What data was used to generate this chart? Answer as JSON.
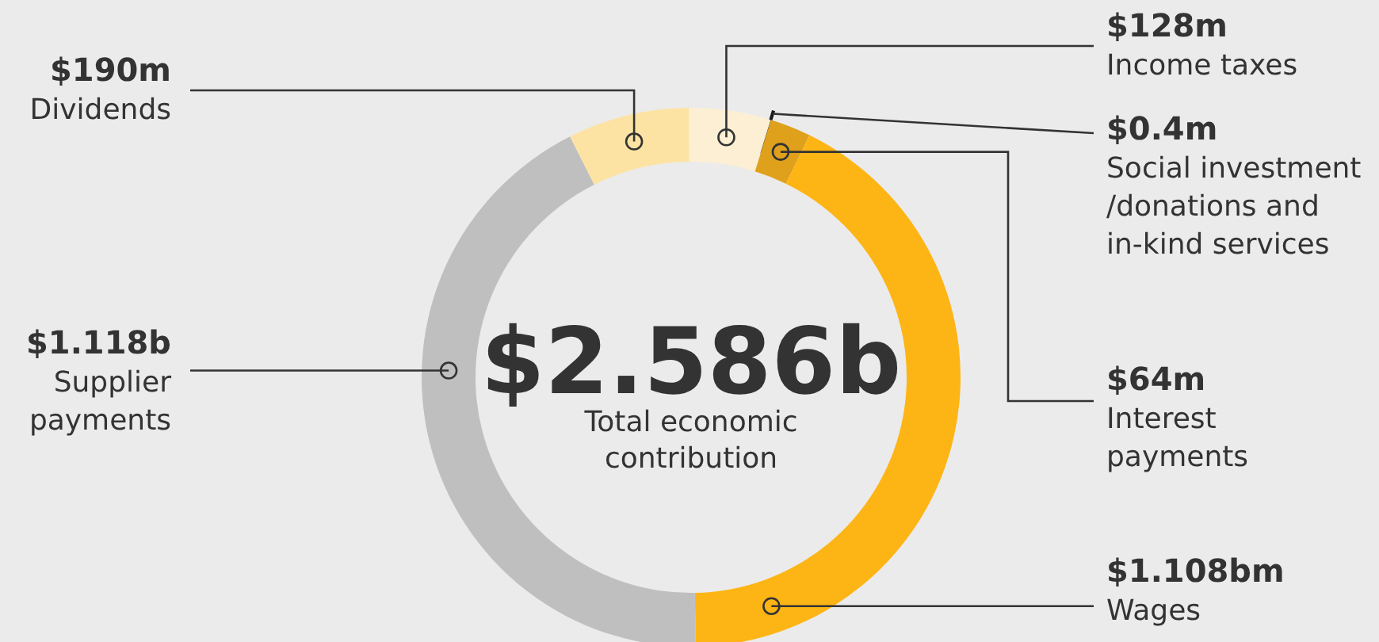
{
  "chart_data": {
    "type": "donut",
    "title": "$2.586b",
    "subtitle": "Total economic contribution",
    "categories": [
      "Social investment /donations and in-kind services",
      "Interest payments",
      "Wages",
      "Supplier payments",
      "Dividends",
      "Income taxes"
    ],
    "values": [
      0.4,
      64,
      1108,
      1118,
      190,
      128
    ],
    "value_labels": [
      "$0.4m",
      "$64m",
      null,
      null,
      "$190m",
      "$128m"
    ],
    "annotations": [
      "$1.108bm",
      "$1.118b"
    ],
    "colors": [
      "#1a1a1a",
      "#dfa11c",
      "#fdb515",
      "#bfbfc0",
      "#fde3a3",
      "#fcefd3"
    ],
    "legend": false
  }
}
